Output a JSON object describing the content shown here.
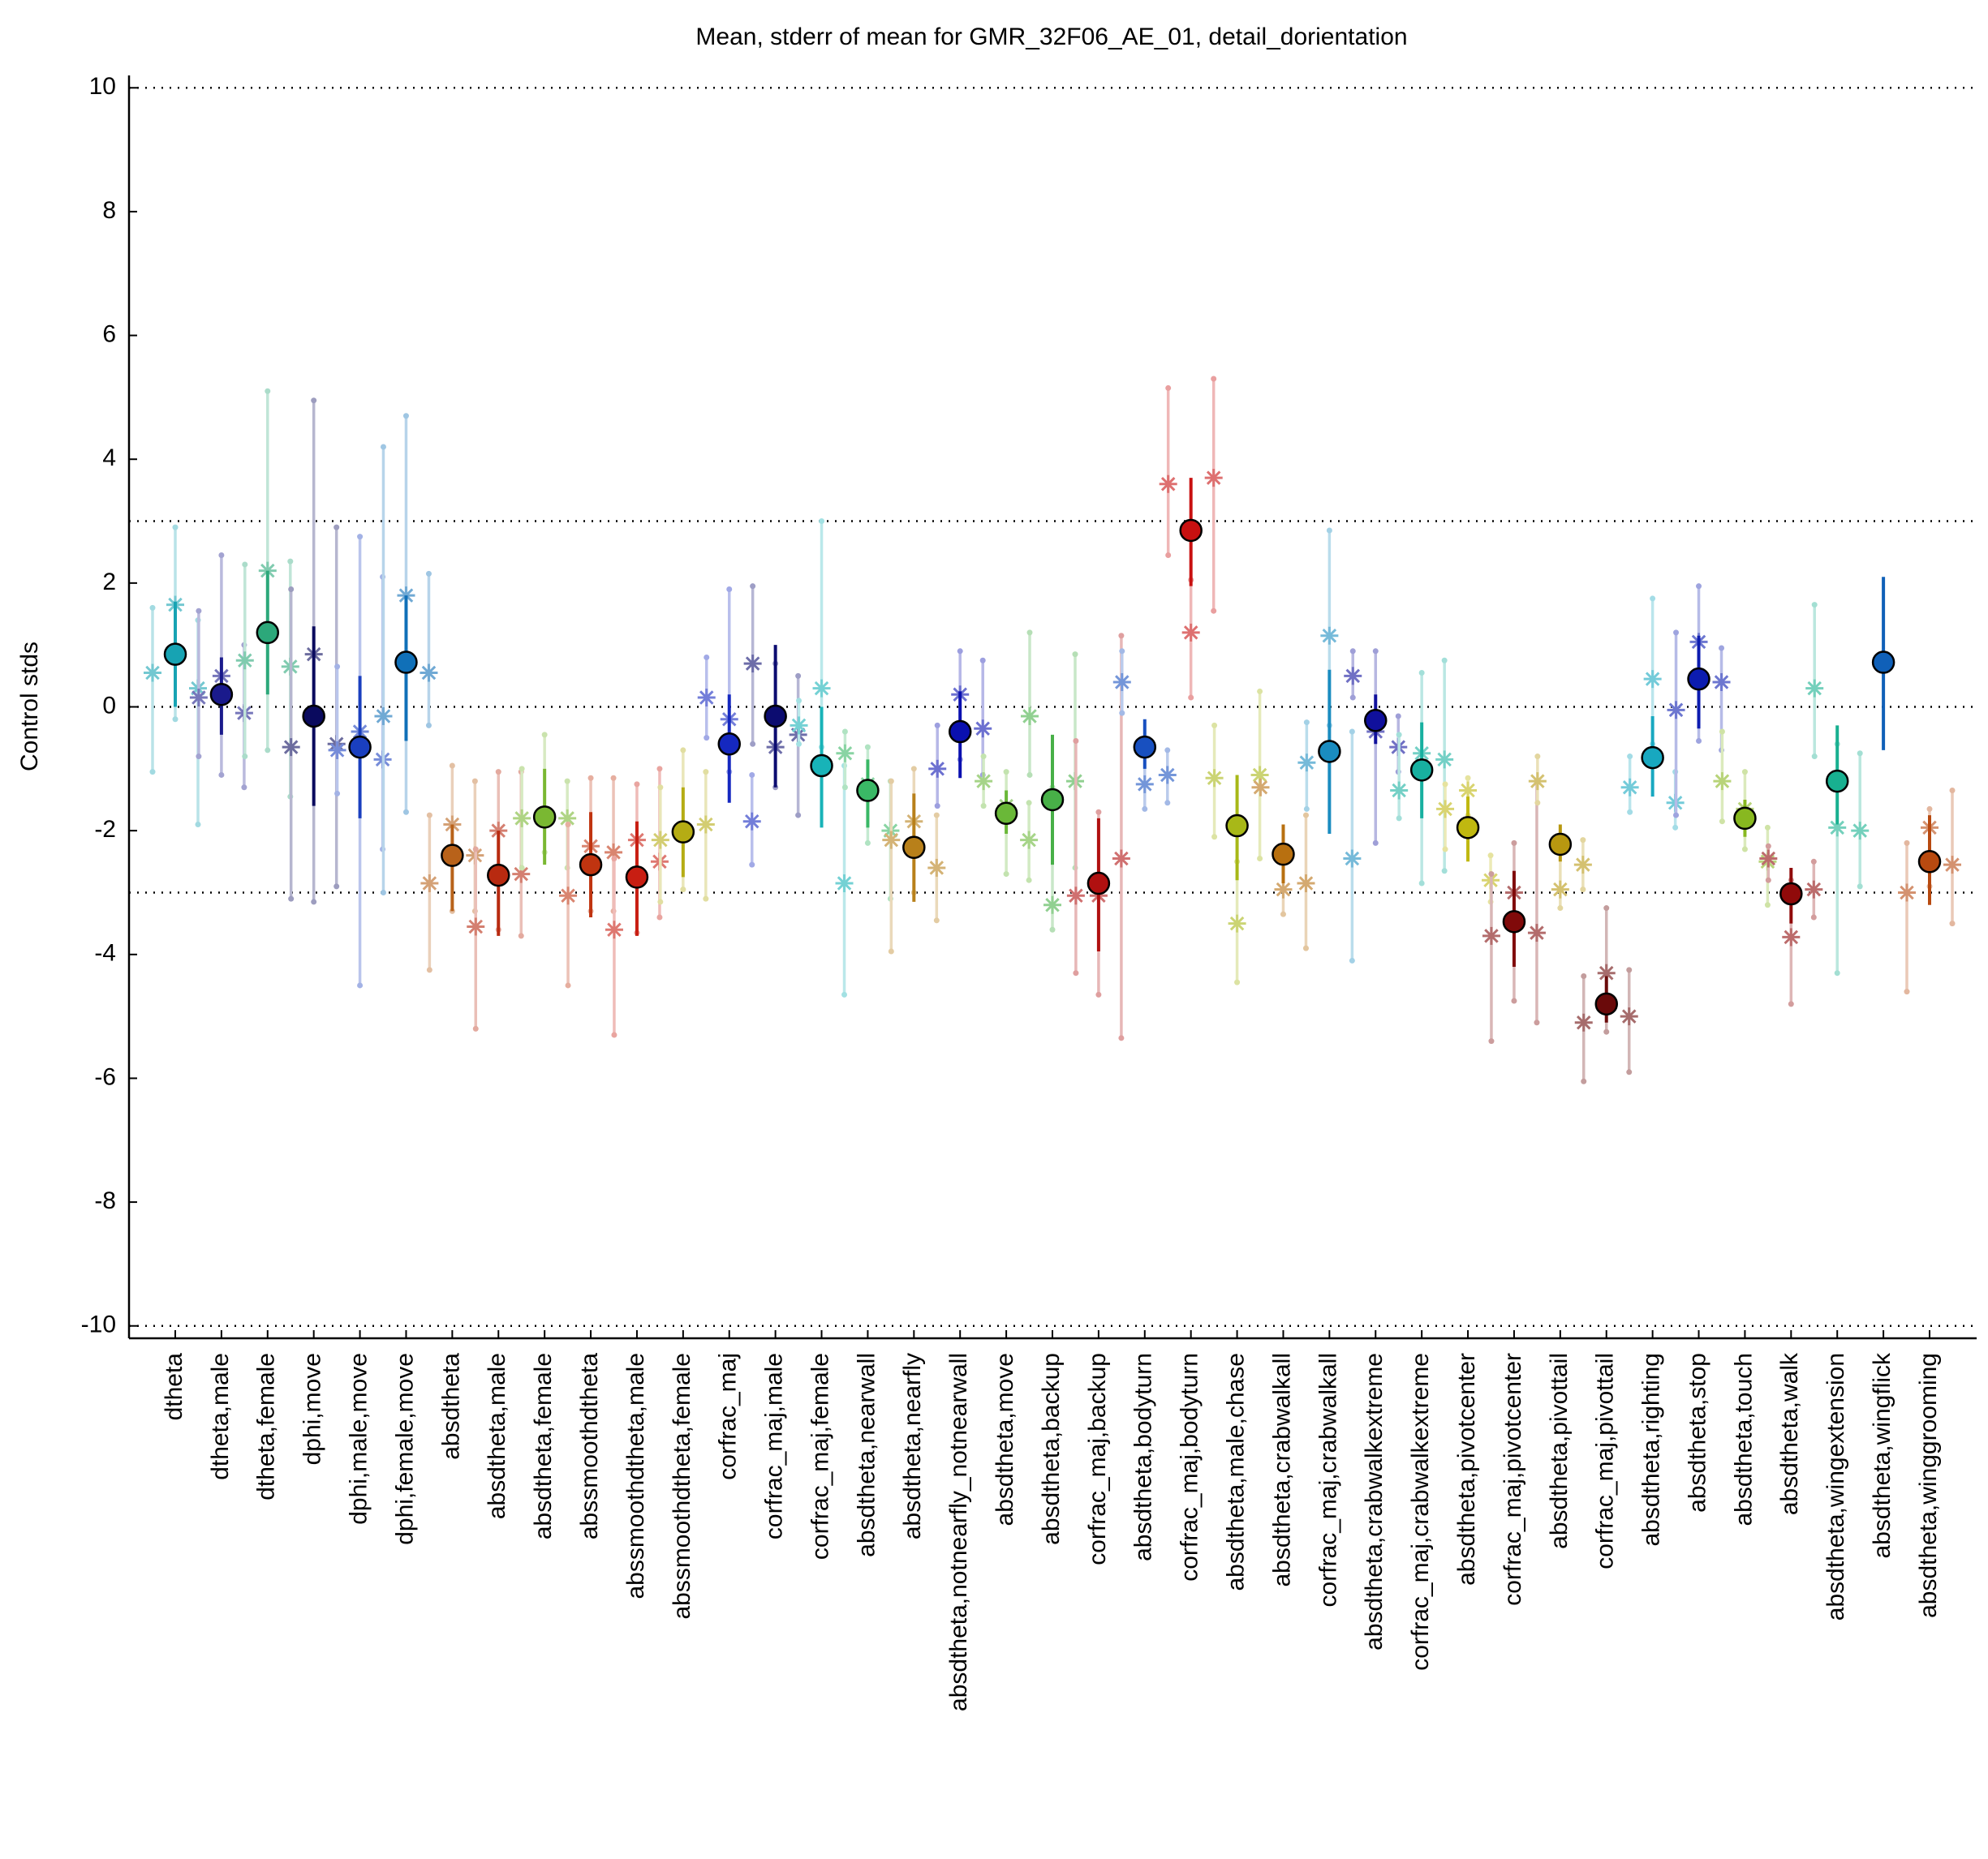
{
  "chart_data": {
    "type": "errorbar",
    "title": "Mean, stderr of mean for GMR_32F06_AE_01, detail_dorientation",
    "y_label": "Control stds",
    "ylim": [
      -10.2,
      10.2
    ],
    "yticks": [
      -10,
      -8,
      -6,
      -4,
      -2,
      0,
      2,
      4,
      6,
      8,
      10
    ],
    "ref_lines": [
      -10,
      -3,
      0,
      3,
      10
    ],
    "categories": [
      "dtheta",
      "dtheta,male",
      "dtheta,female",
      "dphi,move",
      "dphi,male,move",
      "dphi,female,move",
      "absdtheta",
      "absdtheta,male",
      "absdtheta,female",
      "abssmoothdtheta",
      "abssmoothdtheta,male",
      "abssmoothdtheta,female",
      "corfrac_maj",
      "corfrac_maj,male",
      "corfrac_maj,female",
      "absdtheta,nearwall",
      "absdtheta,nearfly",
      "absdtheta,notnearfly_notnearwall",
      "absdtheta,move",
      "absdtheta,backup",
      "corfrac_maj,backup",
      "absdtheta,bodyturn",
      "corfrac_maj,bodyturn",
      "absdtheta,male,chase",
      "absdtheta,crabwalkall",
      "corfrac_maj,crabwalkall",
      "absdtheta,crabwalkextreme",
      "corfrac_maj,crabwalkextreme",
      "absdtheta,pivotcenter",
      "corfrac_maj,pivotcenter",
      "absdtheta,pivottail",
      "corfrac_maj,pivottail",
      "absdtheta,righting",
      "absdtheta,stop",
      "absdtheta,touch",
      "absdtheta,walk",
      "absdtheta,wingextension",
      "absdtheta,wingflick",
      "absdtheta,winggrooming"
    ],
    "colors": [
      "#17a3b3",
      "#1a1a8c",
      "#2ca87a",
      "#0a0a5e",
      "#1a3fbf",
      "#1070b8",
      "#b8621a",
      "#b82a10",
      "#7ab832",
      "#c03410",
      "#c81e12",
      "#b5ac14",
      "#1528c0",
      "#0c0c70",
      "#18b3b8",
      "#3ab866",
      "#b8801a",
      "#0a10b0",
      "#6ab838",
      "#48b048",
      "#b01010",
      "#1850c0",
      "#c81010",
      "#a8b818",
      "#b87010",
      "#1a8cc0",
      "#10109c",
      "#18b0a0",
      "#c0b810",
      "#800a0a",
      "#b89810",
      "#6a0a0a",
      "#18a8c0",
      "#0c1cb0",
      "#88b820",
      "#900a0a",
      "#18b090",
      "#1060b8",
      "#b84a10"
    ],
    "values": [
      0.85,
      0.2,
      1.2,
      -0.15,
      -0.65,
      0.72,
      -2.4,
      -2.72,
      -1.78,
      -2.55,
      -2.75,
      -2.02,
      -0.6,
      -0.15,
      -0.95,
      -1.35,
      -2.27,
      -0.4,
      -1.72,
      -1.5,
      -2.85,
      -0.65,
      2.85,
      -1.92,
      -2.38,
      -0.72,
      -0.22,
      -1.02,
      -1.95,
      -3.47,
      -2.22,
      -4.8,
      -0.82,
      0.45,
      -1.8,
      -3.02,
      -1.2,
      0.72,
      -2.5
    ],
    "err_low": [
      0.0,
      -0.45,
      0.2,
      -1.6,
      -1.8,
      -0.55,
      -3.3,
      -3.7,
      -2.55,
      -3.4,
      -3.7,
      -2.75,
      -1.55,
      -1.3,
      -1.95,
      -1.95,
      -3.15,
      -1.15,
      -2.05,
      -2.55,
      -3.95,
      -1.0,
      1.95,
      -2.8,
      -2.85,
      -2.05,
      -0.6,
      -1.8,
      -2.5,
      -4.2,
      -2.5,
      -5.1,
      -1.45,
      -0.35,
      -2.1,
      -3.5,
      -1.9,
      -0.7,
      -3.2
    ],
    "err_high": [
      1.7,
      0.8,
      2.2,
      1.3,
      0.5,
      1.8,
      -1.9,
      -2.0,
      -1.0,
      -1.7,
      -1.85,
      -1.3,
      0.2,
      1.0,
      0.0,
      -0.85,
      -1.4,
      0.25,
      -1.35,
      -0.45,
      -1.8,
      -0.2,
      3.7,
      -1.1,
      -1.9,
      0.6,
      0.2,
      -0.25,
      -1.45,
      -2.65,
      -1.9,
      -4.35,
      -0.15,
      1.15,
      -1.5,
      -2.6,
      -0.3,
      2.1,
      -1.75
    ],
    "replicates": [
      [
        [
          0.55,
          -1.05,
          1.6
        ],
        [
          1.65,
          -0.2,
          2.9
        ],
        [
          0.3,
          -1.9,
          1.4
        ]
      ],
      [
        [
          0.15,
          -0.8,
          1.55
        ],
        [
          0.5,
          -1.1,
          2.45
        ],
        [
          -0.1,
          -1.3,
          1.0
        ]
      ],
      [
        [
          0.75,
          -0.8,
          2.3
        ],
        [
          2.2,
          -0.7,
          5.1
        ],
        [
          0.65,
          -1.45,
          2.35
        ]
      ],
      [
        [
          -0.65,
          -3.1,
          1.9
        ],
        [
          0.85,
          -3.15,
          4.95
        ],
        [
          -0.6,
          -2.9,
          2.9
        ]
      ],
      [
        [
          -0.7,
          -1.4,
          0.65
        ],
        [
          -0.4,
          -4.5,
          2.75
        ],
        [
          -0.85,
          -2.3,
          2.1
        ]
      ],
      [
        [
          -0.15,
          -3.0,
          4.2
        ],
        [
          1.8,
          -1.7,
          4.7
        ],
        [
          0.55,
          -0.3,
          2.15
        ]
      ],
      [
        [
          -2.85,
          -4.25,
          -1.75
        ],
        [
          -1.9,
          -3.3,
          -0.95
        ],
        [
          -2.4,
          -3.3,
          -1.2
        ]
      ],
      [
        [
          -3.55,
          -5.2,
          -2.3
        ],
        [
          -2.0,
          -3.6,
          -1.05
        ],
        [
          -2.7,
          -3.7,
          -1.05
        ]
      ],
      [
        [
          -1.8,
          -2.6,
          -1.0
        ],
        [
          -1.75,
          -2.35,
          -0.45
        ],
        [
          -1.8,
          -2.6,
          -1.2
        ]
      ],
      [
        [
          -3.05,
          -4.5,
          -1.9
        ],
        [
          -2.25,
          -3.3,
          -1.15
        ],
        [
          -2.35,
          -3.3,
          -1.15
        ]
      ],
      [
        [
          -3.6,
          -5.3,
          -2.45
        ],
        [
          -2.15,
          -3.65,
          -1.25
        ],
        [
          -2.5,
          -3.4,
          -1.0
        ]
      ],
      [
        [
          -2.15,
          -3.15,
          -1.3
        ],
        [
          -2.05,
          -2.95,
          -0.7
        ],
        [
          -1.9,
          -3.1,
          -1.05
        ]
      ],
      [
        [
          0.15,
          -0.5,
          0.8
        ],
        [
          -0.2,
          -1.05,
          1.9
        ],
        [
          -1.85,
          -2.55,
          -1.1
        ]
      ],
      [
        [
          0.7,
          -0.6,
          1.95
        ],
        [
          -0.65,
          -1.3,
          0.7
        ],
        [
          -0.45,
          -1.75,
          0.5
        ]
      ],
      [
        [
          -0.3,
          -0.6,
          0.1
        ],
        [
          0.3,
          -0.65,
          3.0
        ],
        [
          -2.85,
          -4.65,
          -0.95
        ]
      ],
      [
        [
          -0.75,
          -1.3,
          -0.4
        ],
        [
          -1.25,
          -2.2,
          -0.65
        ],
        [
          -2.0,
          -3.1,
          -1.2
        ]
      ],
      [
        [
          -2.15,
          -3.95,
          -1.2
        ],
        [
          -1.85,
          -3.0,
          -1.0
        ],
        [
          -2.6,
          -3.45,
          -1.75
        ]
      ],
      [
        [
          -1.0,
          -1.6,
          -0.3
        ],
        [
          0.2,
          -0.85,
          0.9
        ],
        [
          -0.35,
          -1.1,
          0.75
        ]
      ],
      [
        [
          -1.2,
          -1.6,
          -0.8
        ],
        [
          -1.6,
          -2.7,
          -1.05
        ],
        [
          -2.15,
          -2.8,
          -1.55
        ]
      ],
      [
        [
          -0.15,
          -1.1,
          1.2
        ],
        [
          -3.2,
          -3.6,
          -1.3
        ],
        [
          -1.2,
          -2.6,
          0.85
        ]
      ],
      [
        [
          -3.05,
          -4.3,
          -0.55
        ],
        [
          -3.05,
          -4.65,
          -1.7
        ],
        [
          -2.45,
          -5.35,
          1.15
        ]
      ],
      [
        [
          0.4,
          -0.1,
          0.9
        ],
        [
          -1.25,
          -1.65,
          -0.7
        ],
        [
          -1.1,
          -1.55,
          -0.7
        ]
      ],
      [
        [
          3.6,
          2.45,
          5.15
        ],
        [
          1.2,
          0.15,
          2.05
        ],
        [
          3.7,
          1.55,
          5.3
        ]
      ],
      [
        [
          -1.15,
          -2.1,
          -0.3
        ],
        [
          -3.5,
          -4.45,
          -2.5
        ],
        [
          -1.1,
          -2.45,
          0.25
        ]
      ],
      [
        [
          -1.3
        ],
        [
          -2.95,
          -3.35,
          -2.3
        ],
        [
          -2.85,
          -3.9,
          -1.75
        ]
      ],
      [
        [
          -0.9,
          -1.65,
          -0.25
        ],
        [
          1.15,
          -0.3,
          2.85
        ],
        [
          -2.45,
          -4.1,
          -0.4
        ]
      ],
      [
        [
          0.5,
          0.15,
          0.9
        ],
        [
          -0.4,
          -2.2,
          0.9
        ],
        [
          -0.65,
          -1.05,
          -0.15
        ]
      ],
      [
        [
          -1.35,
          -1.8,
          -0.45
        ],
        [
          -0.75,
          -2.85,
          0.55
        ],
        [
          -0.85,
          -2.65,
          0.75
        ]
      ],
      [
        [
          -1.65,
          -2.3,
          -1.25
        ],
        [
          -1.35,
          -1.75,
          -1.15
        ],
        [
          -2.8,
          -3.15,
          -2.4
        ]
      ],
      [
        [
          -3.7,
          -5.4,
          -2.7
        ],
        [
          -3.0,
          -4.75,
          -2.2
        ],
        [
          -3.65,
          -5.1,
          -1.2
        ]
      ],
      [
        [
          -1.2,
          -1.55,
          -0.8
        ],
        [
          -2.95,
          -3.25,
          -2.25
        ],
        [
          -2.55,
          -2.95,
          -2.15
        ]
      ],
      [
        [
          -5.1,
          -6.05,
          -4.35
        ],
        [
          -4.3,
          -5.25,
          -3.25
        ],
        [
          -5.0,
          -5.9,
          -4.25
        ]
      ],
      [
        [
          -1.3,
          -1.7,
          -0.8
        ],
        [
          0.45,
          -0.6,
          1.75
        ],
        [
          -1.55,
          -1.95,
          -1.05
        ]
      ],
      [
        [
          -0.05,
          -1.75,
          1.2
        ],
        [
          1.05,
          -0.55,
          1.95
        ],
        [
          0.4,
          -0.7,
          0.95
        ]
      ],
      [
        [
          -1.2,
          -1.85,
          -0.4
        ],
        [
          -1.65,
          -2.3,
          -1.05
        ],
        [
          -2.5,
          -3.2,
          -1.95
        ]
      ],
      [
        [
          -2.45,
          -2.8,
          -2.25
        ],
        [
          -3.72,
          -4.8,
          -2.8
        ],
        [
          -2.95,
          -3.4,
          -2.5
        ]
      ],
      [
        [
          0.3,
          -0.8,
          1.65
        ],
        [
          -1.95,
          -4.3,
          -0.6
        ],
        [
          -2.0,
          -2.9,
          -0.75
        ]
      ],
      [],
      [
        [
          -3.0,
          -4.6,
          -2.2
        ],
        [
          -1.95,
          -2.9,
          -1.65
        ],
        [
          -2.55,
          -3.5,
          -1.35
        ]
      ]
    ]
  }
}
